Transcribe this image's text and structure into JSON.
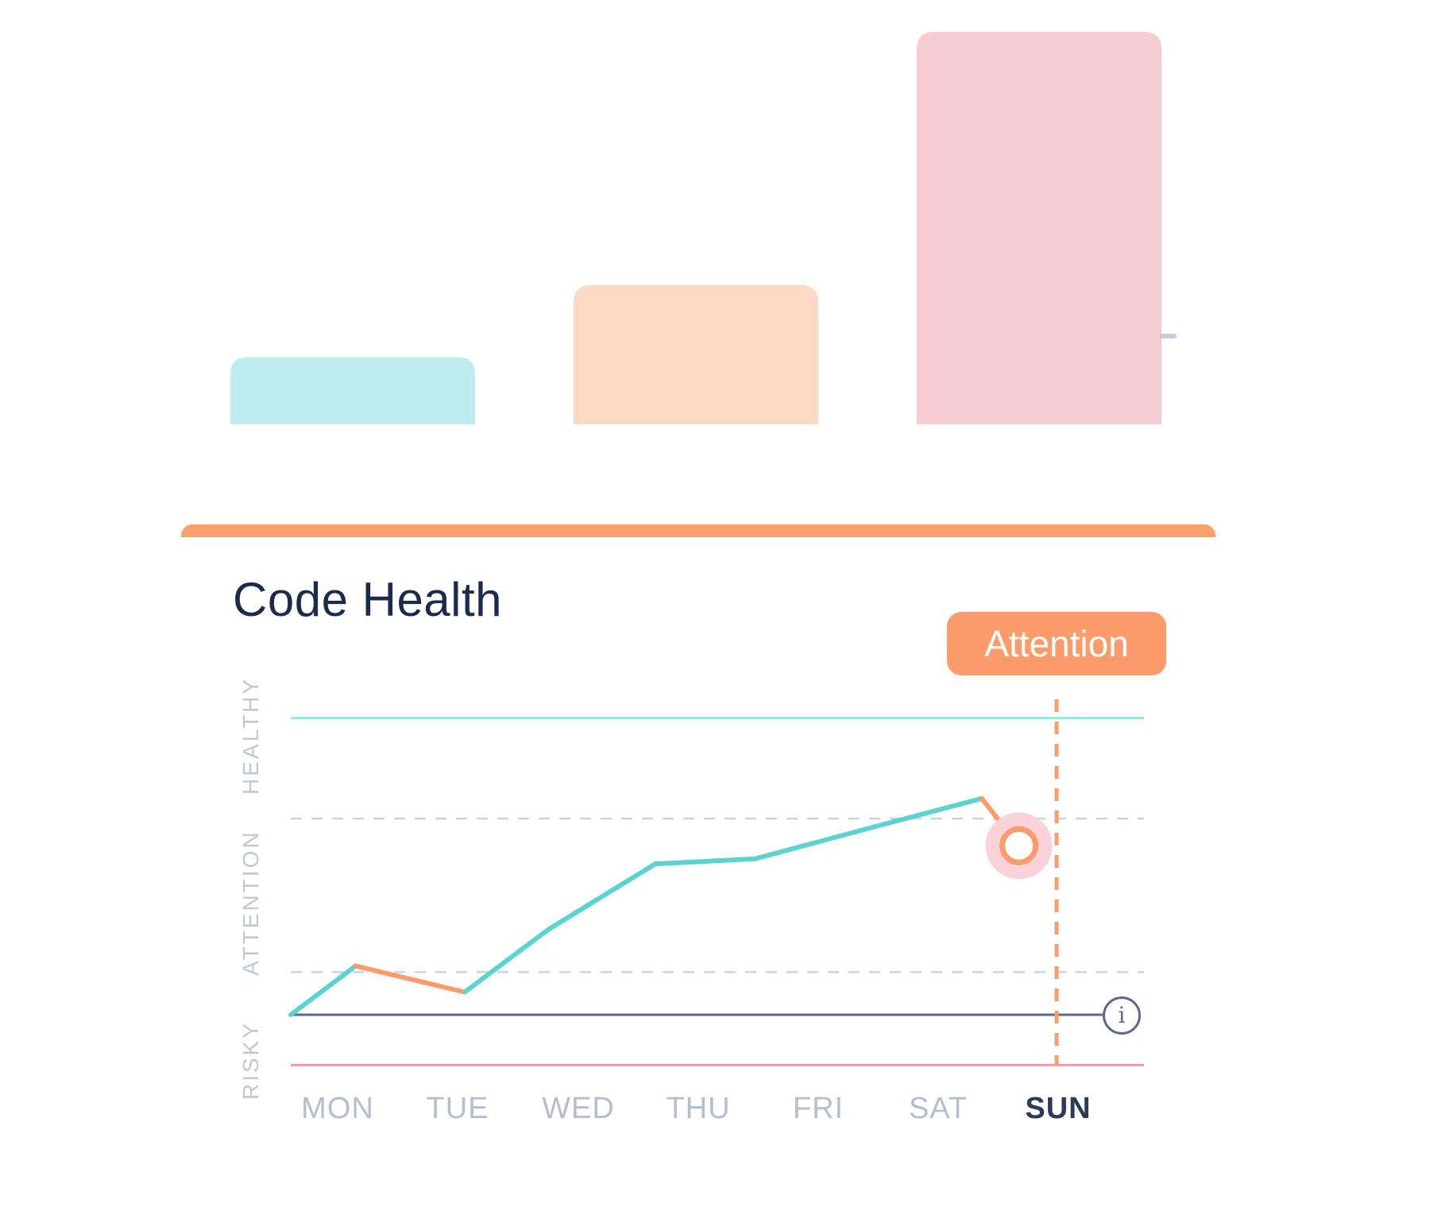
{
  "summary_bars": {
    "chart_data": {
      "type": "bar",
      "categories": [
        "",
        "",
        ""
      ],
      "values": [
        85,
        176,
        496
      ],
      "ylim": [
        0,
        500
      ],
      "colors": [
        "#bfeded",
        "#fcd9c5",
        "#f6cdd3"
      ]
    }
  },
  "card": {
    "title": "Code Health",
    "accent_color": "#fba06c"
  },
  "health_chart": {
    "status_badge": "Attention",
    "info_icon": "info-icon",
    "chart_data": {
      "type": "line",
      "title": "Code Health",
      "x": [
        "MON",
        "TUE",
        "WED",
        "THU",
        "FRI",
        "SAT",
        "SUN"
      ],
      "highlight_x": "SUN",
      "zones": [
        "RISKY",
        "ATTENTION",
        "HEALTHY"
      ],
      "zone_boundaries": [
        0.9,
        3.9,
        6.9
      ],
      "ylim": [
        0,
        7
      ],
      "series": [
        {
          "points": [
            {
              "x": 0.0,
              "y": 1.0
            },
            {
              "x": 0.54,
              "y": 1.97
            },
            {
              "x": 1.45,
              "y": 1.45
            },
            {
              "x": 2.15,
              "y": 2.7
            },
            {
              "x": 3.04,
              "y": 4.0
            },
            {
              "x": 3.87,
              "y": 4.1
            },
            {
              "x": 4.84,
              "y": 4.72
            },
            {
              "x": 5.76,
              "y": 5.3
            },
            {
              "x": 6.07,
              "y": 4.36
            }
          ],
          "segment_status": [
            "healthy",
            "attention",
            "healthy",
            "healthy",
            "healthy",
            "healthy",
            "healthy",
            "attention"
          ]
        }
      ],
      "colors": {
        "healthy": "#5bd3d3",
        "attention": "#fb9c6a",
        "risky": "#ee9aa3",
        "baseline": "#5c6987",
        "grid": "#cdd2e2"
      }
    }
  }
}
